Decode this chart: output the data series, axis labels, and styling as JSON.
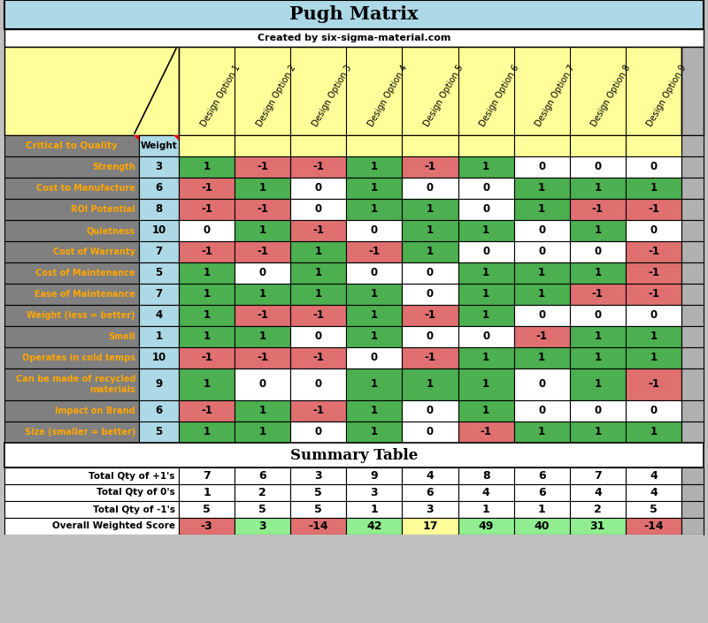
{
  "title": "Pugh Matrix",
  "subtitle": "Created by six-sigma-material.com",
  "col_headers": [
    "Design Option 1",
    "Design Option 2",
    "Design Option 3",
    "Design Option 4",
    "Design Option 5",
    "Design Option 6",
    "Design Option 7",
    "Design Option 8",
    "Design Option 9"
  ],
  "row_labels": [
    "Strength",
    "Cost to Manufacture",
    "ROI Potential",
    "Quietness",
    "Cost of Warranty",
    "Cost of Maintenance",
    "Ease of Maintenance",
    "Weight (less = better)",
    "Smell",
    "Operates in cold temps",
    "Can be made of recycled\nmaterials",
    "Impact on Brand",
    "Size (smaller = better)"
  ],
  "weights": [
    3,
    6,
    8,
    10,
    7,
    5,
    7,
    4,
    1,
    10,
    9,
    6,
    5
  ],
  "matrix": [
    [
      1,
      -1,
      -1,
      1,
      -1,
      1,
      0,
      0,
      0
    ],
    [
      -1,
      1,
      0,
      1,
      0,
      0,
      1,
      1,
      1
    ],
    [
      -1,
      -1,
      0,
      1,
      1,
      0,
      1,
      -1,
      -1
    ],
    [
      0,
      1,
      -1,
      0,
      1,
      1,
      0,
      1,
      0
    ],
    [
      -1,
      -1,
      1,
      -1,
      1,
      0,
      0,
      0,
      -1
    ],
    [
      1,
      0,
      1,
      0,
      0,
      1,
      1,
      1,
      -1
    ],
    [
      1,
      1,
      1,
      1,
      0,
      1,
      1,
      -1,
      -1
    ],
    [
      1,
      -1,
      -1,
      1,
      -1,
      1,
      0,
      0,
      0
    ],
    [
      1,
      1,
      0,
      1,
      0,
      0,
      -1,
      1,
      1
    ],
    [
      -1,
      -1,
      -1,
      0,
      -1,
      1,
      1,
      1,
      1
    ],
    [
      1,
      0,
      0,
      1,
      1,
      1,
      0,
      1,
      -1
    ],
    [
      -1,
      1,
      -1,
      1,
      0,
      1,
      0,
      0,
      0
    ],
    [
      1,
      1,
      0,
      1,
      0,
      -1,
      1,
      1,
      1
    ]
  ],
  "summary_labels": [
    "Total Qty of +1's",
    "Total Qty of 0's",
    "Total Qty of -1's",
    "Overall Weighted Score"
  ],
  "summary_data": [
    [
      7,
      6,
      3,
      9,
      4,
      8,
      6,
      7,
      4
    ],
    [
      1,
      2,
      5,
      3,
      6,
      4,
      6,
      4,
      4
    ],
    [
      5,
      5,
      5,
      1,
      3,
      1,
      1,
      2,
      5
    ],
    [
      -3,
      3,
      -14,
      42,
      17,
      49,
      40,
      31,
      -14
    ]
  ],
  "color_pos": "#4caf50",
  "color_neg": "#e07070",
  "color_zero": "#ffffff",
  "color_header_bg": "#add8e6",
  "color_yellow": "#ffff99",
  "color_gray_row": "#808080",
  "color_gray_sidebar": "#b0b0b0",
  "color_label_text": "#ffa500",
  "color_title_bg": "#add8e6",
  "color_weight_bg": "#add8e6",
  "weighted_score_colors": [
    "#e07070",
    "#90ee90",
    "#e07070",
    "#90ee90",
    "#ffff99",
    "#90ee90",
    "#90ee90",
    "#90ee90",
    "#e07070"
  ]
}
